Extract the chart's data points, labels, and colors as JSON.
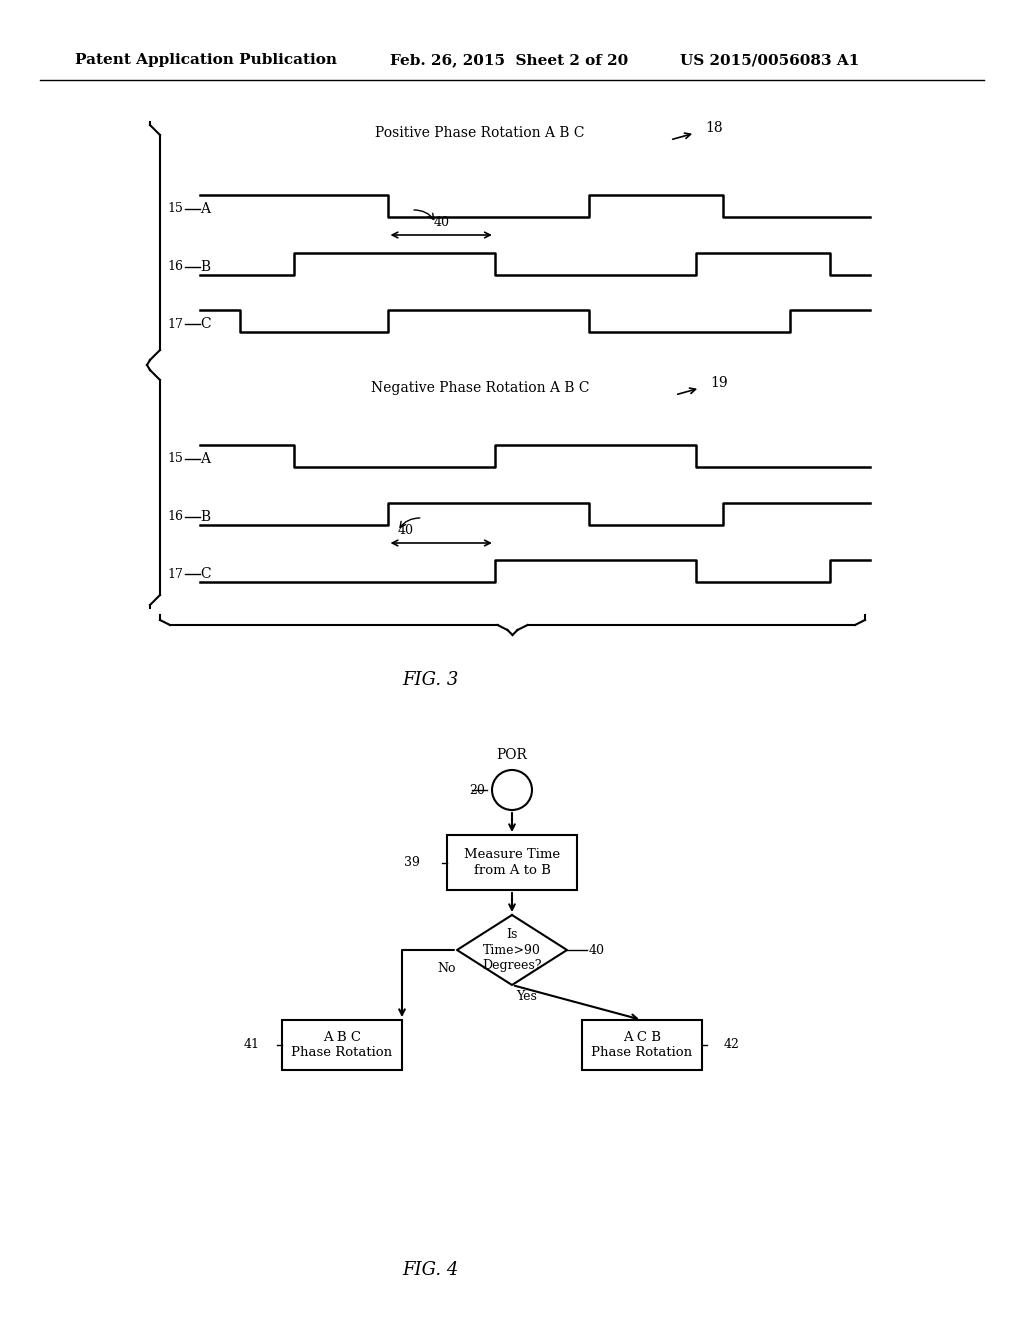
{
  "bg_color": "#ffffff",
  "header_left": "Patent Application Publication",
  "header_mid": "Feb. 26, 2015  Sheet 2 of 20",
  "header_right": "US 2015/0056083 A1",
  "fig3_label": "FIG. 3",
  "fig4_label": "FIG. 4",
  "pos_title": "Positive Phase Rotation A B C",
  "neg_title": "Negative Phase Rotation A B C",
  "label_18": "18",
  "label_19": "19",
  "label_40_pos": "40",
  "label_40_neg": "40",
  "line_15A": "15",
  "line_16B": "16",
  "line_17C": "17",
  "flowchart": {
    "por_label": "POR",
    "node20_label": "20",
    "node39_label": "39",
    "node39_text": "Measure Time\nfrom A to B",
    "node40_label": "40",
    "node40_text": "Is\nTime>90\nDegrees?",
    "node41_label": "41",
    "node41_text": "A B C\nPhase Rotation",
    "node42_label": "42",
    "node42_text": "A C B\nPhase Rotation",
    "yes_label": "Yes",
    "no_label": "No"
  }
}
